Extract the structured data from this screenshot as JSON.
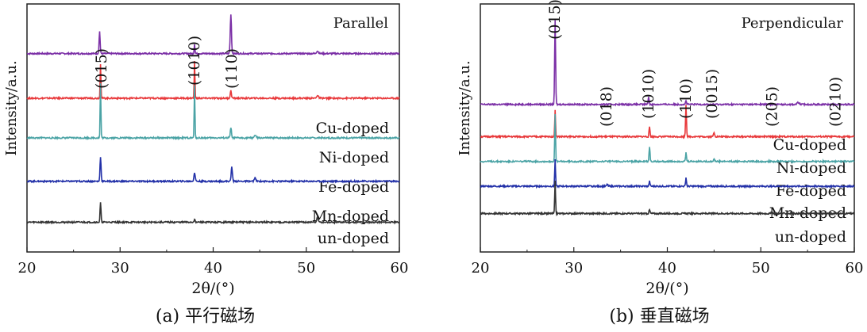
{
  "chart_data": [
    {
      "type": "line",
      "panel_caption": "(a) 平行磁场",
      "title": "Parallel",
      "xlabel": "2θ/(°)",
      "ylabel": "Intensity/a.u.",
      "xlim": [
        20,
        60
      ],
      "xticks": [
        "20",
        "30",
        "40",
        "50",
        "60"
      ],
      "peak_labels": [
        {
          "x": 28.0,
          "text": "(015)"
        },
        {
          "x": 38.0,
          "text": "(1010)"
        },
        {
          "x": 42.0,
          "text": "(110)"
        }
      ],
      "series": [
        {
          "name": "Cu-doped",
          "color": "#7b2fa6",
          "baseline": 0.8,
          "peaks": [
            [
              27.8,
              0.09,
              0.16
            ],
            [
              38.0,
              0.04,
              0.12
            ],
            [
              41.9,
              0.16,
              0.18
            ],
            [
              51.2,
              0.01,
              0.3
            ]
          ]
        },
        {
          "name": "Ni-doped",
          "color": "#e8383a",
          "baseline": 0.62,
          "peaks": [
            [
              27.9,
              0.14,
              0.12
            ],
            [
              38.0,
              0.15,
              0.12
            ],
            [
              41.9,
              0.03,
              0.18
            ],
            [
              51.2,
              0.01,
              0.3
            ]
          ]
        },
        {
          "name": "Fe-doped",
          "color": "#4aa3a5",
          "baseline": 0.46,
          "peaks": [
            [
              27.9,
              0.22,
              0.12
            ],
            [
              38.0,
              0.21,
              0.12
            ],
            [
              41.9,
              0.04,
              0.18
            ],
            [
              44.5,
              0.01,
              0.3
            ]
          ]
        },
        {
          "name": "Mn-doped",
          "color": "#2230a8",
          "baseline": 0.285,
          "peaks": [
            [
              27.9,
              0.1,
              0.16
            ],
            [
              38.0,
              0.035,
              0.2
            ],
            [
              42.0,
              0.06,
              0.18
            ],
            [
              44.5,
              0.015,
              0.2
            ]
          ]
        },
        {
          "name": "un-doped",
          "color": "#333333",
          "baseline": 0.12,
          "peaks": [
            [
              27.9,
              0.08,
              0.14
            ],
            [
              38.0,
              0.01,
              0.2
            ],
            [
              51.2,
              0.02,
              0.2
            ]
          ]
        }
      ]
    },
    {
      "type": "line",
      "panel_caption": "(b) 垂直磁场",
      "title": "Perpendicular",
      "xlabel": "2θ/(°)",
      "ylabel": "Intensity/a.u.",
      "xlim": [
        20,
        60
      ],
      "xticks": [
        "20",
        "30",
        "40",
        "50",
        "60"
      ],
      "peak_labels": [
        {
          "x": 28.0,
          "text": "(015)"
        },
        {
          "x": 33.5,
          "text": "(018)"
        },
        {
          "x": 38.0,
          "text": "(1010)"
        },
        {
          "x": 42.0,
          "text": "(110)"
        },
        {
          "x": 44.8,
          "text": "(0015)"
        },
        {
          "x": 51.2,
          "text": "(205)"
        },
        {
          "x": 58.0,
          "text": "(0210)"
        }
      ],
      "series": [
        {
          "name": "Cu-doped",
          "color": "#7b2fa6",
          "baseline": 0.595,
          "peaks": [
            [
              28.0,
              0.34,
              0.14
            ],
            [
              38.0,
              0.03,
              0.16
            ],
            [
              42.0,
              0.015,
              0.16
            ],
            [
              54.0,
              0.008,
              0.3
            ]
          ]
        },
        {
          "name": "Ni-doped",
          "color": "#e8383a",
          "baseline": 0.465,
          "peaks": [
            [
              28.0,
              0.11,
              0.12
            ],
            [
              38.1,
              0.04,
              0.14
            ],
            [
              42.0,
              0.13,
              0.14
            ],
            [
              45.0,
              0.015,
              0.2
            ]
          ]
        },
        {
          "name": "Fe-doped",
          "color": "#4aa3a5",
          "baseline": 0.365,
          "peaks": [
            [
              28.0,
              0.19,
              0.12
            ],
            [
              38.1,
              0.06,
              0.14
            ],
            [
              42.0,
              0.035,
              0.14
            ],
            [
              45.0,
              0.008,
              0.2
            ]
          ]
        },
        {
          "name": "Mn-doped",
          "color": "#2230a8",
          "baseline": 0.265,
          "peaks": [
            [
              28.0,
              0.11,
              0.12
            ],
            [
              33.6,
              0.008,
              0.2
            ],
            [
              38.1,
              0.02,
              0.14
            ],
            [
              42.0,
              0.035,
              0.14
            ]
          ]
        },
        {
          "name": "un-doped",
          "color": "#333333",
          "baseline": 0.155,
          "peaks": [
            [
              28.0,
              0.13,
              0.12
            ],
            [
              38.1,
              0.015,
              0.16
            ],
            [
              51.2,
              0.006,
              0.2
            ],
            [
              58.0,
              0.005,
              0.2
            ]
          ]
        }
      ]
    }
  ]
}
